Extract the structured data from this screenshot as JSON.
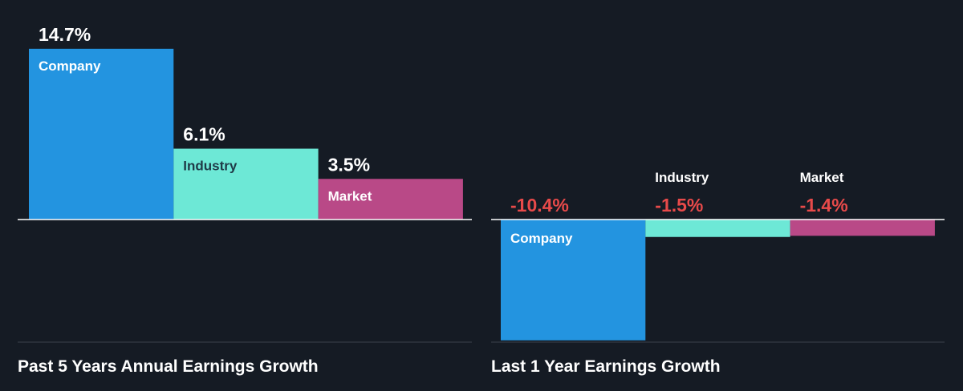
{
  "chart_data": [
    {
      "type": "bar",
      "title": "Past 5 Years Annual Earnings Growth",
      "categories": [
        "Company",
        "Industry",
        "Market"
      ],
      "values": [
        14.7,
        6.1,
        3.5
      ],
      "value_labels": [
        "14.7%",
        "6.1%",
        "3.5%"
      ],
      "colors": [
        "#2394e0",
        "#6de8d6",
        "#b94987"
      ],
      "ylim": [
        -10.4,
        14.7
      ],
      "grid": false,
      "legend": "none"
    },
    {
      "type": "bar",
      "title": "Last 1 Year Earnings Growth",
      "categories": [
        "Company",
        "Industry",
        "Market"
      ],
      "values": [
        -10.4,
        -1.5,
        -1.4
      ],
      "value_labels": [
        "-10.4%",
        "-1.5%",
        "-1.4%"
      ],
      "colors": [
        "#2394e0",
        "#6de8d6",
        "#b94987"
      ],
      "ylim": [
        -10.4,
        14.7
      ],
      "grid": false,
      "legend": "none"
    }
  ],
  "style": {
    "background": "#151b24",
    "axis_color": "#ffffff",
    "negative_label_color": "#e84a4a",
    "positive_label_color": "#ffffff",
    "category_label_on_dark": "#ffffff",
    "category_label_on_light": "#1f3a47"
  }
}
